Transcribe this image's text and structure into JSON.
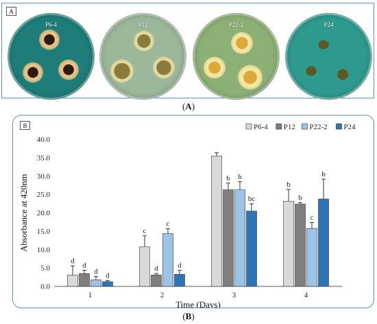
{
  "panel_a": {
    "tag": "A",
    "caption": "A",
    "dishes": [
      {
        "label": "P6-4",
        "agar": "#1e7d78",
        "colony": "#2a1a12",
        "halo": "#e8c285"
      },
      {
        "label": "P12",
        "agar": "#9cb79a",
        "colony": "#8a7a3c",
        "halo": "#e9dca0"
      },
      {
        "label": "P22-2",
        "agar": "#8db076",
        "colony": "#dba93a",
        "halo": "#f5e7a0"
      },
      {
        "label": "P24",
        "agar": "#2e9a8e",
        "colony": "#5a5a28",
        "halo": "#6a7040"
      }
    ]
  },
  "panel_b": {
    "tag": "B",
    "caption": "B"
  },
  "chart_data": {
    "type": "bar",
    "title": "",
    "xlabel": "Time (Days)",
    "ylabel": "Absorbance at 420nm",
    "categories": [
      "1",
      "2",
      "3",
      "4"
    ],
    "ylim": [
      0,
      40
    ],
    "yticks": [
      "0.0",
      "5.0",
      "10.0",
      "15.0",
      "20.0",
      "25.0",
      "30.0",
      "35.0",
      "40.0"
    ],
    "legend_position": "top-right",
    "grid": false,
    "series": [
      {
        "name": "P6-4",
        "color": "#d9d9d9",
        "values": [
          3.1,
          10.8,
          35.5,
          23.2
        ],
        "errors": [
          2.5,
          3.0,
          0.9,
          3.2
        ],
        "letters": [
          "d",
          "c",
          "",
          "b"
        ]
      },
      {
        "name": "P12",
        "color": "#7f7f7f",
        "values": [
          3.5,
          3.1,
          26.3,
          22.4
        ],
        "errors": [
          0.9,
          0.4,
          1.8,
          0.4
        ],
        "letters": [
          "d",
          "d",
          "b",
          "b"
        ]
      },
      {
        "name": "P22-2",
        "color": "#9dc3e6",
        "values": [
          1.8,
          14.4,
          26.3,
          15.8
        ],
        "errors": [
          0.9,
          1.3,
          2.2,
          1.6
        ],
        "letters": [
          "d",
          "c",
          "b",
          "c"
        ]
      },
      {
        "name": "P24",
        "color": "#2e75b6",
        "values": [
          1.3,
          3.3,
          20.5,
          23.8
        ],
        "errors": [
          0.3,
          1.1,
          2.0,
          5.4
        ],
        "letters": [
          "d",
          "d",
          "bc",
          "b"
        ]
      }
    ]
  }
}
